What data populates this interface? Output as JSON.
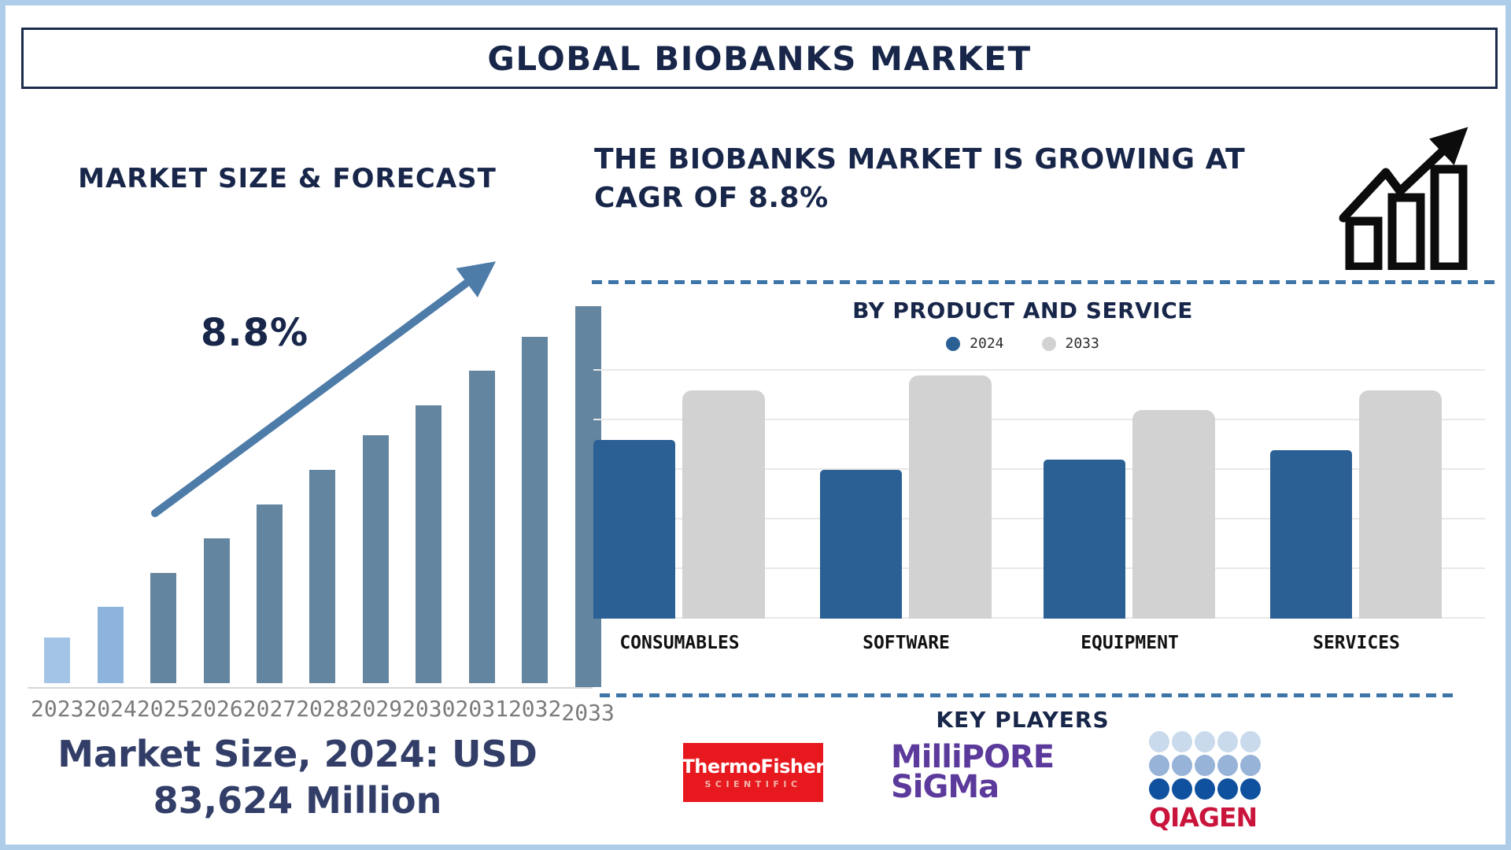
{
  "title": "GLOBAL BIOBANKS MARKET",
  "left_panel": {
    "heading": "MARKET SIZE & FORECAST",
    "growth_label": "8.8%",
    "caption_line1": "Market Size, 2024: USD",
    "caption_line2": "83,624 Million"
  },
  "right_panel": {
    "headline_line1": "THE BIOBANKS MARKET IS GROWING AT",
    "headline_line2": "CAGR OF 8.8%",
    "section_title": "BY PRODUCT AND SERVICE",
    "key_players_title": "KEY PLAYERS",
    "logos": {
      "thermo": {
        "line1": "ThermoFisher",
        "line2": "SCIENTIFIC",
        "bg": "#e7191f",
        "line1_color": "#ffffff",
        "line2_color": "#f3b6ac"
      },
      "millipore": {
        "line1": "MilliPORE",
        "line2": "SiGMa",
        "color": "#5b3a9b"
      },
      "qiagen": {
        "text": "QIAGEN",
        "text_color": "#c9143c",
        "dot_rows": [
          "#c9daec",
          "#97b3d8",
          "#10519f"
        ],
        "dot_cols": 5
      }
    }
  },
  "chart_data": [
    {
      "id": "market_size_forecast",
      "type": "bar",
      "title": "MARKET SIZE & FORECAST",
      "categories": [
        "2023",
        "2024",
        "2025",
        "2026",
        "2027",
        "2028",
        "2029",
        "2030",
        "2031",
        "2032",
        "2033"
      ],
      "values": [
        12,
        20,
        29,
        38,
        47,
        56,
        65,
        73,
        82,
        91,
        100
      ],
      "units": "relative bar height, % of 2033 bar (no numeric y-axis shown)",
      "bar_colors": [
        "#a3c4e6",
        "#8db4dd",
        "#64859f",
        "#64859f",
        "#64859f",
        "#64859f",
        "#64859f",
        "#64859f",
        "#64859f",
        "#64859f",
        "#64859f"
      ],
      "annotations": [
        "8.8%"
      ],
      "grid": false,
      "xlabel": "",
      "ylabel": "",
      "caption": "Market Size, 2024: USD 83,624 Million",
      "cagr_percent": 8.8
    },
    {
      "id": "by_product_and_service",
      "type": "bar",
      "title": "BY PRODUCT AND SERVICE",
      "categories": [
        "CONSUMABLES",
        "SOFTWARE",
        "EQUIPMENT",
        "SERVICES"
      ],
      "series": [
        {
          "name": "2024",
          "color": "#2b6095",
          "values": [
            3.6,
            3.0,
            3.2,
            3.4
          ]
        },
        {
          "name": "2033",
          "color": "#d2d2d2",
          "values": [
            4.6,
            4.9,
            4.2,
            4.6
          ]
        }
      ],
      "units": "gridline units (no numeric axis labels shown)",
      "ylim": [
        0,
        5.4
      ],
      "grid": true,
      "legend_position": "top",
      "xlabel": "",
      "ylabel": ""
    }
  ],
  "colors": {
    "frame": "#aecde9",
    "navy": "#172649",
    "caption_navy": "#323e68",
    "title_border": "#1d2b4c",
    "arrow": "#4e7ca8",
    "axis_line": "#d8d8d8",
    "year_label": "#7b7b7b",
    "dashed_line": "#3e75a8",
    "gridline": "#e9e9e9",
    "category_label": "#111111"
  }
}
